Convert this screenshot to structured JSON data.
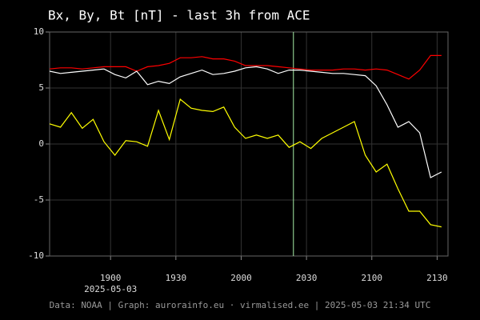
{
  "chart_data": {
    "type": "line",
    "title": "Bx, By, Bt [nT] - last 3h from ACE",
    "date_label": "2025-05-03",
    "footer": "Data: NOAA | Graph: aurorainfo.eu · virmalised.ee | 2025-05-03 21:34 UTC",
    "x": [
      1112,
      1117,
      1122,
      1127,
      1132,
      1137,
      1142,
      1147,
      1152,
      1157,
      1162,
      1167,
      1172,
      1177,
      1182,
      1187,
      1192,
      1197,
      1202,
      1207,
      1212,
      1217,
      1222,
      1227,
      1232,
      1237,
      1242,
      1247,
      1252,
      1257,
      1262,
      1267,
      1272,
      1277,
      1282,
      1287,
      1292
    ],
    "series": [
      {
        "color": "#ff0000",
        "values": [
          6.7,
          6.8,
          6.8,
          6.7,
          6.8,
          6.9,
          6.9,
          6.9,
          6.5,
          6.9,
          7.0,
          7.2,
          7.7,
          7.7,
          7.8,
          7.6,
          7.6,
          7.4,
          7.0,
          7.0,
          7.0,
          6.9,
          6.8,
          6.7,
          6.6,
          6.6,
          6.6,
          6.7,
          6.7,
          6.6,
          6.7,
          6.6,
          6.2,
          5.8,
          6.6,
          7.9,
          7.9
        ]
      },
      {
        "color": "#ffffff",
        "values": [
          6.5,
          6.3,
          6.4,
          6.5,
          6.6,
          6.7,
          6.2,
          5.9,
          6.5,
          5.3,
          5.6,
          5.4,
          6.0,
          6.3,
          6.6,
          6.2,
          6.3,
          6.5,
          6.8,
          6.9,
          6.7,
          6.3,
          6.6,
          6.6,
          6.5,
          6.4,
          6.3,
          6.3,
          6.2,
          6.1,
          5.2,
          3.5,
          1.5,
          2.0,
          1.0,
          -3.0,
          -2.5
        ]
      },
      {
        "color": "#ffff00",
        "values": [
          1.8,
          1.5,
          2.8,
          1.4,
          2.2,
          0.2,
          -1.0,
          0.3,
          0.2,
          -0.2,
          3.0,
          0.4,
          4.0,
          3.2,
          3.0,
          2.9,
          3.3,
          1.5,
          0.5,
          0.8,
          0.5,
          0.8,
          -0.3,
          0.2,
          -0.4,
          0.5,
          1.0,
          1.5,
          2.0,
          -1.0,
          -2.5,
          -1.8,
          -4.0,
          -6.0,
          -6.0,
          -7.2,
          -7.4
        ]
      }
    ],
    "marker_x": 1224,
    "marker_color": "#a8f0a8",
    "xlim": [
      1112,
      1295
    ],
    "xticks": [
      {
        "value": 1140,
        "label": "1900"
      },
      {
        "value": 1170,
        "label": "1930"
      },
      {
        "value": 1200,
        "label": "2000"
      },
      {
        "value": 1230,
        "label": "2030"
      },
      {
        "value": 1260,
        "label": "2100"
      },
      {
        "value": 1290,
        "label": "2130"
      }
    ],
    "ylim": [
      -10,
      10
    ],
    "yticks": [
      -10,
      -5,
      0,
      5,
      10
    ],
    "grid": true
  }
}
